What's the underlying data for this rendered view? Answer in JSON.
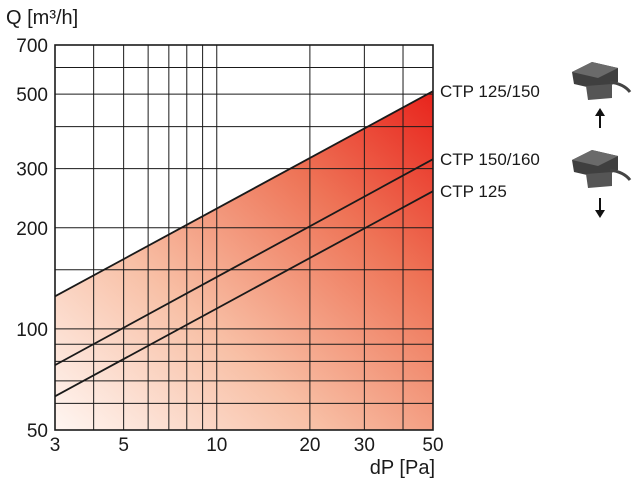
{
  "chart_data": {
    "type": "area",
    "xlabel": "dP [Pa]",
    "ylabel": "Q [m³/h]",
    "xscale": "log",
    "yscale": "log",
    "xlim": [
      3,
      50
    ],
    "ylim": [
      50,
      700
    ],
    "x_ticks": [
      3,
      5,
      10,
      20,
      30,
      50
    ],
    "x_tick_labels": [
      "3",
      "5",
      "10",
      "20",
      "30",
      "50"
    ],
    "y_ticks": [
      50,
      100,
      200,
      300,
      500,
      700
    ],
    "y_tick_labels": [
      "50",
      "100",
      "200",
      "300",
      "500",
      "700"
    ],
    "grid": true,
    "series": [
      {
        "name": "CTP 125/150",
        "x": [
          3,
          50
        ],
        "y": [
          125,
          510
        ]
      },
      {
        "name": "CTP 150/160",
        "x": [
          3,
          50
        ],
        "y": [
          78,
          320
        ]
      },
      {
        "name": "CTP 125",
        "x": [
          3,
          50
        ],
        "y": [
          63,
          257
        ]
      }
    ],
    "shaded_region": {
      "below_series": "CTP 125/150",
      "color_from": "#fff5f0",
      "color_to": "#e8231c"
    },
    "colors": {
      "line": "#1a1a1a",
      "grid": "#1a1a1a",
      "fill_hot": "#e8231c",
      "fill_cold": "#fff6f2",
      "icon": "#4a4a4a"
    },
    "icons": [
      {
        "name": "ctp-unit-air-up-icon",
        "series": "CTP 125/150",
        "arrow": "up"
      },
      {
        "name": "ctp-unit-air-down-icon",
        "series": "CTP 150/160",
        "arrow": "down"
      }
    ]
  }
}
